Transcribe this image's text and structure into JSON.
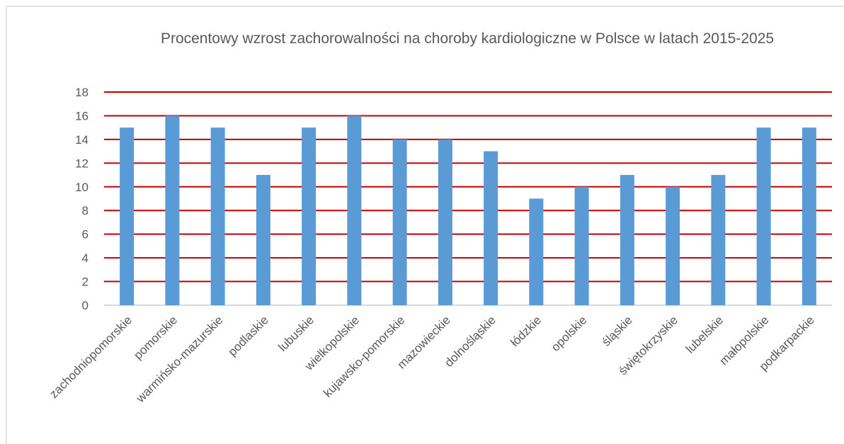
{
  "chart_data": {
    "type": "bar",
    "title": "Procentowy wzrost zachorowalności na choroby kardiologiczne w Polsce w latach 2015-2025",
    "categories": [
      "zachodniopomorskie",
      "pomorskie",
      "warmińsko-mazurskie",
      "podlaskie",
      "lubuskie",
      "wielkopolskie",
      "kujawsko-pomorskie",
      "mazowieckie",
      "dolnośląskie",
      "łódzkie",
      "opolskie",
      "śląskie",
      "świętokrzyskie",
      "lubelskie",
      "małopolskie",
      "podkarpackie"
    ],
    "values": [
      15,
      16,
      15,
      11,
      15,
      16,
      14,
      14,
      13,
      9,
      10,
      11,
      10,
      11,
      15,
      15
    ],
    "color": "#5b9bd5",
    "grid_color": "#c00000",
    "ylim": [
      0,
      18
    ],
    "yticks": [
      0,
      2,
      4,
      6,
      8,
      10,
      12,
      14,
      16,
      18
    ],
    "grid": true
  }
}
